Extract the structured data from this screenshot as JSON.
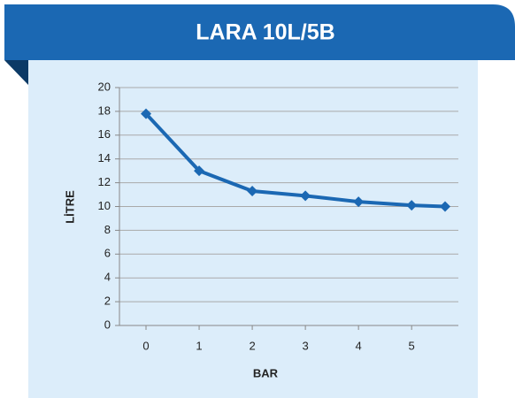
{
  "chart_data": {
    "type": "line",
    "title": "LARA 10L/5B",
    "x_label": "BAR",
    "y_label": "LİTRE",
    "x": [
      0,
      1,
      2,
      3,
      4,
      5,
      5.63
    ],
    "series": [
      {
        "name": "LARA 10L/5B",
        "color": "#1b68b3",
        "values": [
          17.8,
          13.0,
          11.3,
          10.9,
          10.4,
          10.1,
          10.0
        ]
      }
    ],
    "xlim": [
      -0.5,
      5.88
    ],
    "xticks": [
      0,
      1,
      2,
      3,
      4,
      5
    ],
    "ylim": [
      0,
      20
    ],
    "yticks": [
      0,
      2,
      4,
      6,
      8,
      10,
      12,
      14,
      16,
      18,
      20
    ],
    "grid": true
  }
}
